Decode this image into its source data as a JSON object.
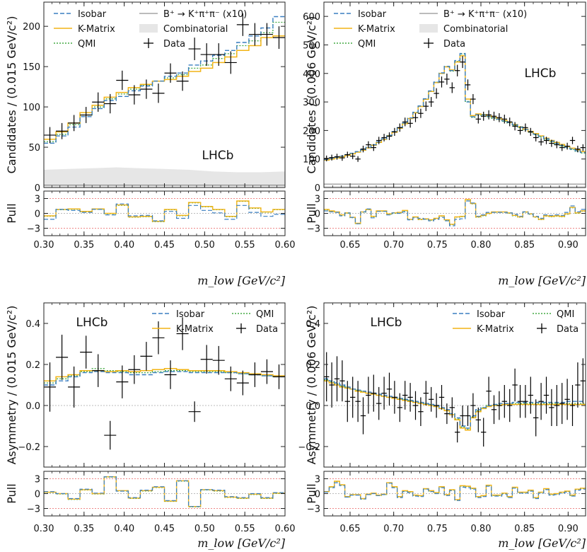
{
  "legend_labels": {
    "isobar": "Isobar",
    "kmatrix": "K-Matrix",
    "qmi": "QMI",
    "bkpp": "B⁺ → K⁺π⁺π⁻ (x10)",
    "comb": "Combinatorial",
    "data": "Data"
  },
  "colors": {
    "isobar": "#3a7fc0",
    "kmatrix": "#f2b416",
    "qmi": "#44aa44",
    "bkpp": "#777777",
    "comb": "#e6e6e6",
    "data": "#000000",
    "pull_ref": "#ee8888"
  },
  "chart_data": [
    {
      "id": "top-left",
      "type": "line",
      "title": "",
      "watermark": "LHCb",
      "ylabel": "Candidates / (0.015 GeV/c²)",
      "xlabel": "m_low [GeV/c²]",
      "xlim": [
        0.3,
        0.6
      ],
      "ylim": [
        0,
        230
      ],
      "xticks": [
        "0.30",
        "0.35",
        "0.40",
        "0.45",
        "0.50",
        "0.55",
        "0.60"
      ],
      "yticks": [
        "0",
        "50",
        "100",
        "150",
        "200"
      ],
      "legend": [
        "isobar",
        "kmatrix",
        "qmi",
        "bkpp",
        "comb",
        "data"
      ],
      "bin_edges": [
        0.3,
        0.315,
        0.33,
        0.345,
        0.36,
        0.375,
        0.39,
        0.405,
        0.42,
        0.435,
        0.45,
        0.465,
        0.48,
        0.495,
        0.51,
        0.525,
        0.54,
        0.555,
        0.57,
        0.585,
        0.6
      ],
      "data_y": [
        65,
        70,
        80,
        90,
        106,
        104,
        133,
        115,
        122,
        117,
        142,
        132,
        172,
        165,
        165,
        155,
        202,
        190,
        190,
        186
      ],
      "data_err": [
        10,
        10,
        10,
        10,
        12,
        12,
        12,
        12,
        12,
        12,
        12,
        12,
        14,
        14,
        14,
        14,
        14,
        14,
        14,
        14
      ],
      "isobar": [
        55,
        64,
        75,
        88,
        98,
        108,
        113,
        120,
        126,
        132,
        138,
        142,
        152,
        157,
        164,
        170,
        180,
        188,
        198,
        212
      ],
      "kmatrix": [
        60,
        69,
        80,
        93,
        102,
        112,
        118,
        124,
        128,
        132,
        134,
        138,
        144,
        148,
        155,
        162,
        170,
        176,
        186,
        188
      ],
      "qmi": [
        57,
        66,
        78,
        90,
        100,
        110,
        116,
        122,
        127,
        132,
        136,
        140,
        148,
        152,
        160,
        166,
        176,
        182,
        192,
        205
      ],
      "comb_x": [
        0.3,
        0.33,
        0.36,
        0.39,
        0.42,
        0.45,
        0.48,
        0.51,
        0.54,
        0.57,
        0.6
      ],
      "comb_y": [
        22,
        23,
        24,
        25,
        24,
        23,
        22,
        20,
        19,
        19,
        20
      ],
      "bkpp_y": 3,
      "pull_ylim": [
        -4.5,
        4.5
      ],
      "pull_yticks": [
        "3",
        "0",
        "−3"
      ],
      "pull_isobar": [
        -1.2,
        0.8,
        0.6,
        0.2,
        0.8,
        -0.3,
        1.9,
        -0.5,
        -0.4,
        -1.5,
        0.4,
        -1.0,
        1.6,
        0.6,
        0.1,
        -1.2,
        1.6,
        0.2,
        -0.6,
        -0.2
      ],
      "pull_kmatrix": [
        -0.5,
        0.8,
        0.9,
        0.4,
        0.9,
        0.0,
        1.7,
        -0.7,
        -0.6,
        -1.6,
        0.8,
        -0.4,
        2.2,
        1.4,
        0.8,
        -0.6,
        2.5,
        1.1,
        0.3,
        0.8
      ]
    },
    {
      "id": "top-right",
      "type": "line",
      "title": "",
      "watermark": "LHCb",
      "ylabel": "Candidates / (0.006 GeV/c²)",
      "xlabel": "m_low [GeV/c²]",
      "xlim": [
        0.62,
        0.92
      ],
      "ylim": [
        0,
        650
      ],
      "xticks": [
        "0.65",
        "0.70",
        "0.75",
        "0.80",
        "0.85",
        "0.90"
      ],
      "yticks": [
        "0",
        "100",
        "200",
        "300",
        "400",
        "500",
        "600"
      ],
      "legend": [
        "isobar",
        "kmatrix",
        "qmi",
        "bkpp",
        "comb",
        "data"
      ],
      "bin_width": 0.006,
      "x_start": 0.62,
      "data_y": [
        102,
        105,
        108,
        104,
        115,
        110,
        100,
        135,
        150,
        140,
        165,
        175,
        180,
        195,
        210,
        230,
        225,
        245,
        260,
        285,
        300,
        330,
        370,
        380,
        350,
        410,
        440,
        360,
        310,
        240,
        250,
        255,
        250,
        245,
        240,
        230,
        215,
        200,
        210,
        195,
        175,
        160,
        165,
        155,
        150,
        140,
        145,
        165,
        135,
        140
      ],
      "isobar": [
        98,
        102,
        106,
        110,
        115,
        120,
        126,
        133,
        141,
        150,
        160,
        171,
        183,
        196,
        210,
        226,
        244,
        264,
        286,
        311,
        339,
        370,
        402,
        425,
        410,
        445,
        470,
        300,
        248,
        255,
        255,
        250,
        245,
        240,
        234,
        228,
        220,
        212,
        204,
        196,
        187,
        179,
        171,
        163,
        155,
        148,
        141,
        135,
        129,
        123
      ],
      "kmatrix": [
        96,
        100,
        104,
        108,
        113,
        118,
        124,
        131,
        139,
        148,
        158,
        169,
        181,
        194,
        208,
        224,
        242,
        262,
        284,
        309,
        337,
        368,
        400,
        423,
        412,
        440,
        462,
        310,
        252,
        258,
        256,
        251,
        246,
        241,
        235,
        229,
        221,
        213,
        205,
        197,
        189,
        181,
        173,
        165,
        158,
        151,
        144,
        138,
        132,
        126
      ],
      "qmi": [
        97,
        101,
        105,
        109,
        114,
        119,
        125,
        132,
        140,
        149,
        159,
        170,
        182,
        195,
        209,
        225,
        243,
        263,
        285,
        310,
        338,
        369,
        401,
        424,
        408,
        442,
        468,
        302,
        246,
        254,
        253,
        248,
        243,
        238,
        232,
        226,
        218,
        210,
        202,
        194,
        185,
        177,
        169,
        161,
        153,
        146,
        139,
        133,
        127,
        121
      ],
      "bkpp_y": 12,
      "comb_y": 6,
      "pull_ylim": [
        -4.5,
        4.5
      ],
      "pull_yticks": [
        "3",
        "0",
        "−3"
      ],
      "pull_isobar": [
        0.5,
        0.3,
        0.2,
        -0.5,
        0.1,
        -0.8,
        -2.1,
        0.3,
        0.9,
        -0.9,
        0.4,
        0.4,
        -0.3,
        0.1,
        0.0,
        0.3,
        -1.3,
        -0.9,
        -1.0,
        -1.2,
        -1.5,
        -1.2,
        -0.8,
        -1.5,
        -2.5,
        -1.2,
        -1.1,
        2.5,
        2.1,
        -0.6,
        -0.3,
        0.2,
        0.2,
        0.2,
        0.2,
        0.1,
        -0.2,
        -0.6,
        0.3,
        -0.1,
        -0.6,
        -1.0,
        -0.3,
        -0.4,
        -0.3,
        -0.4,
        0.2,
        1.5,
        0.3,
        0.8
      ],
      "pull_kmatrix": [
        0.8,
        0.5,
        0.3,
        -0.3,
        0.1,
        -0.8,
        -2.0,
        0.3,
        0.8,
        -0.6,
        0.5,
        0.5,
        -0.1,
        0.1,
        0.2,
        0.6,
        -1.2,
        -0.7,
        -1.2,
        -1.1,
        -1.3,
        -1.0,
        -0.5,
        -1.3,
        -2.2,
        -0.7,
        -0.6,
        2.8,
        2.0,
        -0.7,
        -0.4,
        0.0,
        0.3,
        0.3,
        0.3,
        0.1,
        -0.4,
        -0.7,
        0.3,
        -0.1,
        -0.7,
        -1.2,
        -0.5,
        -0.6,
        -0.5,
        -0.6,
        -0.1,
        1.2,
        0.1,
        0.5
      ]
    },
    {
      "id": "bottom-left",
      "type": "line",
      "title": "",
      "watermark": "LHCb",
      "ylabel": "Asymmetry / (0.015 GeV/c²)",
      "xlabel": "m_low [GeV/c²]",
      "xlim": [
        0.3,
        0.6
      ],
      "ylim": [
        -0.3,
        0.5
      ],
      "xticks": [
        "0.30",
        "0.35",
        "0.40",
        "0.45",
        "0.50",
        "0.55",
        "0.60"
      ],
      "yticks": [
        "−0.2",
        "0.0",
        "0.2",
        "0.4"
      ],
      "legend": [
        "isobar",
        "kmatrix",
        "qmi",
        "data"
      ],
      "bin_edges": [
        0.3,
        0.315,
        0.33,
        0.345,
        0.36,
        0.375,
        0.39,
        0.405,
        0.42,
        0.435,
        0.45,
        0.465,
        0.48,
        0.495,
        0.51,
        0.525,
        0.54,
        0.555,
        0.57,
        0.585,
        0.6
      ],
      "data_y": [
        0.09,
        0.235,
        0.09,
        0.26,
        0.17,
        -0.145,
        0.115,
        0.175,
        0.24,
        0.33,
        0.15,
        0.35,
        -0.03,
        0.225,
        0.22,
        0.13,
        0.11,
        0.15,
        0.165,
        0.14
      ],
      "data_err": [
        0.12,
        0.11,
        0.1,
        0.08,
        0.08,
        0.07,
        0.08,
        0.07,
        0.07,
        0.08,
        0.07,
        0.08,
        0.05,
        0.07,
        0.07,
        0.06,
        0.06,
        0.06,
        0.06,
        0.06
      ],
      "isobar": [
        0.1,
        0.12,
        0.14,
        0.16,
        0.165,
        0.16,
        0.16,
        0.15,
        0.15,
        0.16,
        0.165,
        0.165,
        0.16,
        0.16,
        0.16,
        0.16,
        0.155,
        0.15,
        0.145,
        0.14
      ],
      "kmatrix": [
        0.12,
        0.14,
        0.15,
        0.17,
        0.17,
        0.165,
        0.17,
        0.165,
        0.17,
        0.175,
        0.18,
        0.175,
        0.17,
        0.17,
        0.17,
        0.165,
        0.16,
        0.155,
        0.15,
        0.145
      ],
      "qmi": [
        0.11,
        0.13,
        0.145,
        0.165,
        0.18,
        0.17,
        0.165,
        0.16,
        0.16,
        0.165,
        0.17,
        0.17,
        0.165,
        0.165,
        0.165,
        0.16,
        0.155,
        0.15,
        0.145,
        0.14
      ],
      "zero_line": true,
      "pull_ylim": [
        -4.5,
        4.5
      ],
      "pull_yticks": [
        "3",
        "0",
        "−3"
      ],
      "pull_isobar": [
        0.4,
        0.0,
        -1.0,
        0.9,
        0.1,
        3.4,
        0.5,
        -0.8,
        0.7,
        1.4,
        -1.4,
        2.6,
        -2.6,
        0.8,
        0.7,
        -0.6,
        -0.8,
        0.0,
        -0.8,
        0.2
      ],
      "pull_kmatrix": [
        0.3,
        0.0,
        -1.1,
        0.8,
        0.0,
        3.4,
        0.6,
        -0.9,
        0.6,
        1.3,
        -1.5,
        2.6,
        -2.6,
        0.8,
        0.6,
        -0.7,
        -0.9,
        -0.1,
        -0.9,
        0.1
      ]
    },
    {
      "id": "bottom-right",
      "type": "line",
      "title": "",
      "watermark": "LHCb",
      "ylabel": "Asymmetry / (0.006 GeV/c²)",
      "xlabel": "m_low [GeV/c²]",
      "xlim": [
        0.62,
        0.92
      ],
      "ylim": [
        -0.3,
        0.5
      ],
      "xticks": [
        "0.65",
        "0.70",
        "0.75",
        "0.80",
        "0.85",
        "0.90"
      ],
      "yticks": [
        "−0.2",
        "0.0",
        "0.2",
        "0.4"
      ],
      "legend": [
        "isobar",
        "kmatrix",
        "qmi",
        "data"
      ],
      "bin_width": 0.006,
      "x_start": 0.62,
      "data_y": [
        0.14,
        0.1,
        0.13,
        0.12,
        0.02,
        0.04,
        0.02,
        -0.05,
        0.05,
        0.06,
        0.01,
        0.06,
        0.08,
        0.04,
        -0.01,
        0.05,
        0.04,
        0.0,
        -0.03,
        0.06,
        0.03,
        0.0,
        0.04,
        -0.04,
        -0.01,
        -0.13,
        -0.05,
        -0.05,
        0.0,
        -0.07,
        -0.13,
        0.07,
        -0.02,
        0.0,
        0.02,
        0.0,
        0.1,
        0.02,
        0.02,
        0.05,
        -0.06,
        0.02,
        0.05,
        -0.01,
        0.0,
        0.01,
        0.03,
        0.0,
        0.1,
        0.12
      ],
      "data_err": [
        0.12,
        0.11,
        0.11,
        0.1,
        0.1,
        0.1,
        0.1,
        0.09,
        0.09,
        0.09,
        0.08,
        0.08,
        0.08,
        0.08,
        0.07,
        0.07,
        0.07,
        0.07,
        0.07,
        0.06,
        0.06,
        0.06,
        0.06,
        0.05,
        0.05,
        0.05,
        0.05,
        0.05,
        0.06,
        0.06,
        0.07,
        0.07,
        0.07,
        0.07,
        0.08,
        0.08,
        0.08,
        0.08,
        0.08,
        0.09,
        0.09,
        0.09,
        0.09,
        0.09,
        0.1,
        0.1,
        0.1,
        0.1,
        0.11,
        0.11
      ],
      "isobar": [
        0.13,
        0.12,
        0.11,
        0.1,
        0.09,
        0.08,
        0.075,
        0.07,
        0.065,
        0.06,
        0.055,
        0.05,
        0.045,
        0.04,
        0.035,
        0.03,
        0.025,
        0.02,
        0.015,
        0.01,
        0.005,
        0.0,
        -0.01,
        -0.02,
        -0.04,
        -0.06,
        -0.1,
        -0.11,
        -0.05,
        -0.02,
        -0.01,
        0.0,
        0.005,
        0.01,
        0.01,
        0.01,
        0.015,
        0.015,
        0.015,
        0.015,
        0.015,
        0.015,
        0.015,
        0.015,
        0.015,
        0.015,
        0.02,
        0.02,
        0.02,
        0.02
      ],
      "kmatrix": [
        0.12,
        0.11,
        0.1,
        0.09,
        0.085,
        0.08,
        0.07,
        0.065,
        0.06,
        0.055,
        0.05,
        0.045,
        0.04,
        0.035,
        0.03,
        0.025,
        0.02,
        0.015,
        0.01,
        0.005,
        0.0,
        -0.005,
        -0.015,
        -0.025,
        -0.045,
        -0.07,
        -0.11,
        -0.12,
        -0.06,
        -0.03,
        -0.015,
        -0.005,
        0.0,
        0.0,
        0.005,
        0.005,
        0.005,
        0.005,
        0.005,
        0.005,
        0.005,
        0.005,
        0.005,
        0.005,
        0.005,
        0.005,
        0.005,
        0.005,
        0.005,
        0.005
      ],
      "qmi": [
        0.125,
        0.115,
        0.105,
        0.095,
        0.09,
        0.08,
        0.075,
        0.07,
        0.06,
        0.055,
        0.05,
        0.045,
        0.04,
        0.04,
        0.035,
        0.03,
        0.025,
        0.02,
        0.015,
        0.01,
        0.005,
        -0.005,
        -0.015,
        -0.025,
        -0.04,
        -0.065,
        -0.105,
        -0.115,
        -0.055,
        -0.025,
        -0.01,
        0.0,
        0.0,
        0.005,
        0.005,
        0.01,
        0.01,
        0.01,
        0.01,
        0.01,
        0.01,
        0.01,
        0.01,
        0.01,
        0.01,
        0.01,
        0.01,
        0.01,
        0.01,
        0.01
      ],
      "zero_line": true,
      "pull_ylim": [
        -4.5,
        4.5
      ],
      "pull_yticks": [
        "3",
        "0",
        "−3"
      ],
      "pull_isobar": [
        0.3,
        1.2,
        2.2,
        1.6,
        -0.7,
        -0.3,
        -0.3,
        -1.1,
        -0.2,
        0.0,
        -0.4,
        -0.2,
        2.1,
        1.2,
        -0.8,
        0.4,
        0.2,
        -0.5,
        -0.6,
        0.9,
        0.4,
        0.0,
        1.2,
        -0.4,
        0.6,
        -1.4,
        1.3,
        1.2,
        0.9,
        -0.8,
        -0.6,
        1.5,
        -0.5,
        -0.5,
        -0.1,
        -0.8,
        1.1,
        0.1,
        0.1,
        0.5,
        -1.0,
        0.1,
        0.8,
        -0.3,
        -0.2,
        0.1,
        0.3,
        -0.5,
        0.7,
        0.9
      ],
      "pull_kmatrix": [
        0.4,
        1.4,
        2.5,
        1.8,
        -0.6,
        -0.2,
        -0.2,
        -1.0,
        -0.1,
        0.1,
        -0.3,
        -0.1,
        2.2,
        1.4,
        -0.6,
        0.6,
        0.4,
        -0.3,
        -0.4,
        1.0,
        0.6,
        0.2,
        1.4,
        -0.2,
        0.8,
        -1.2,
        1.6,
        1.5,
        1.1,
        -0.6,
        -0.4,
        1.7,
        -0.3,
        -0.3,
        0.1,
        -0.6,
        1.3,
        0.3,
        0.3,
        0.7,
        -0.8,
        0.3,
        1.0,
        -0.1,
        0.0,
        0.3,
        0.5,
        -0.3,
        0.9,
        1.1
      ]
    }
  ]
}
